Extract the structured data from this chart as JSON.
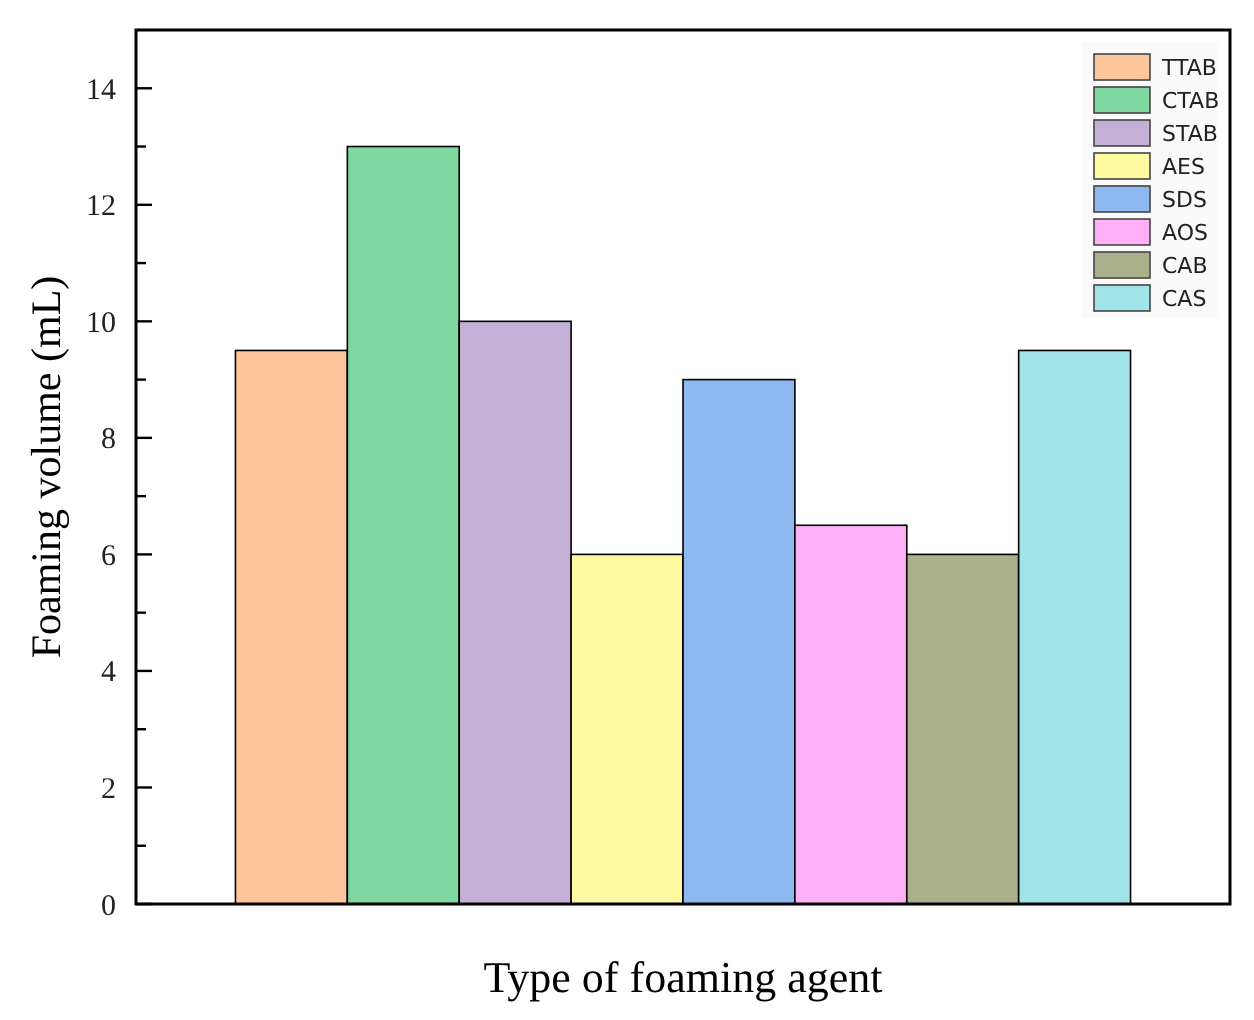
{
  "chart_data": {
    "type": "bar",
    "xlabel": "Type of foaming agent",
    "ylabel": "Foaming volume (mL)",
    "categories": [
      null
    ],
    "series": [
      {
        "name": "TTAB",
        "color": "#fdc69b",
        "values": [
          9.5
        ]
      },
      {
        "name": "CTAB",
        "color": "#7fd8a0",
        "values": [
          13
        ]
      },
      {
        "name": "STAB",
        "color": "#c4b0d6",
        "values": [
          10
        ]
      },
      {
        "name": "AES",
        "color": "#fdf9a0",
        "values": [
          6
        ]
      },
      {
        "name": "SDS",
        "color": "#8db8f0",
        "values": [
          9
        ]
      },
      {
        "name": "AOS",
        "color": "#fdb0f5",
        "values": [
          6.5
        ]
      },
      {
        "name": "CAB",
        "color": "#aab08a",
        "values": [
          6
        ]
      },
      {
        "name": "CAS",
        "color": "#a0e3e8",
        "values": [
          9.5
        ]
      }
    ],
    "ylim": [
      0,
      15
    ],
    "yticks": [
      0,
      {
        "value": 1,
        "label": null
      },
      2,
      {
        "value": 3,
        "label": null
      },
      4,
      {
        "value": 5,
        "label": null
      },
      6,
      {
        "value": 7,
        "label": null
      },
      8,
      {
        "value": 9,
        "label": null
      },
      10,
      {
        "value": 11,
        "label": null
      },
      12,
      {
        "value": 13,
        "label": null
      },
      14
    ],
    "grid": false,
    "legend": "top right"
  }
}
